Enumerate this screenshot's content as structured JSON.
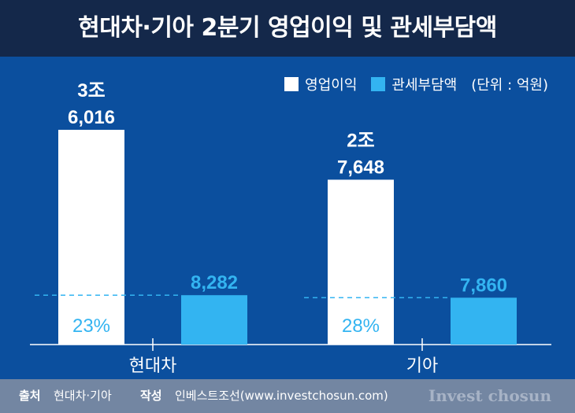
{
  "title": "현대차·기아 2분기 영업이익 및 관세부담액",
  "legend": [
    {
      "label": "영업이익",
      "color": "#ffffff"
    },
    {
      "label": "관세부담액",
      "color": "#33b4f1"
    }
  ],
  "unit": "(단위 : 억원)",
  "chart_data": {
    "type": "bar",
    "title": "현대차·기아 2분기 영업이익 및 관세부담액",
    "categories": [
      "현대차",
      "기아"
    ],
    "series": [
      {
        "name": "영업이익",
        "values": [
          36016,
          27648
        ],
        "labels": [
          [
            "3조",
            "6,016"
          ],
          [
            "2조",
            "7,648"
          ]
        ],
        "color": "#ffffff"
      },
      {
        "name": "관세부담액",
        "values": [
          8282,
          7860
        ],
        "labels": [
          [
            "8,282"
          ],
          [
            "7,860"
          ]
        ],
        "color": "#33b4f1"
      }
    ],
    "ratios": [
      "23%",
      "28%"
    ],
    "unit": "억원",
    "ylim": [
      0,
      36016
    ]
  },
  "footer": {
    "source_label": "출처",
    "source_value": "현대차·기아",
    "author_label": "작성",
    "author_value": "인베스트조선(www.investchosun.com)",
    "brand": "Invest chosun"
  },
  "colors": {
    "background": "#0b4f9e",
    "header": "#14284a",
    "footer": "#7386a2",
    "tariff": "#33b4f1"
  }
}
